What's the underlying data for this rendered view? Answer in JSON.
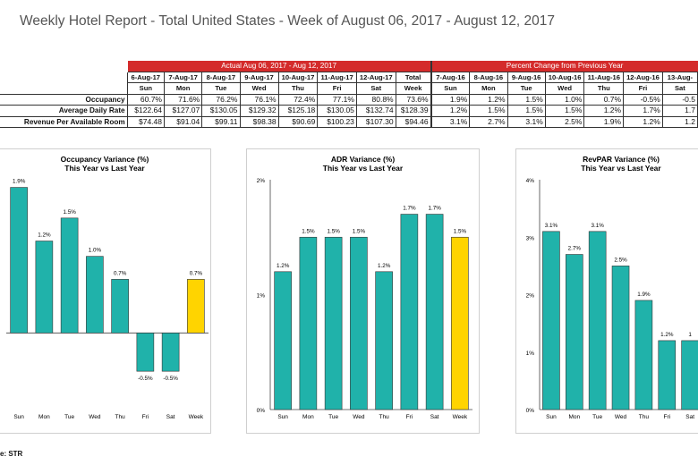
{
  "report": {
    "title": "Weekly Hotel Report - Total United States - Week of August 06, 2017 - August 12, 2017",
    "source": "e: STR"
  },
  "table": {
    "group_actual": "Actual Aug 06, 2017 - Aug 12, 2017",
    "group_change": "Percent Change from Previous Year",
    "actual_dates": [
      "6-Aug-17",
      "7-Aug-17",
      "8-Aug-17",
      "9-Aug-17",
      "10-Aug-17",
      "11-Aug-17",
      "12-Aug-17",
      "Total"
    ],
    "actual_days": [
      "Sun",
      "Mon",
      "Tue",
      "Wed",
      "Thu",
      "Fri",
      "Sat",
      "Week"
    ],
    "change_dates": [
      "7-Aug-16",
      "8-Aug-16",
      "9-Aug-16",
      "10-Aug-16",
      "11-Aug-16",
      "12-Aug-16",
      "13-Aug-"
    ],
    "change_days": [
      "Sun",
      "Mon",
      "Tue",
      "Wed",
      "Thu",
      "Fri",
      "Sat"
    ],
    "rows": [
      {
        "label": "Occupancy",
        "actual": [
          "60.7%",
          "71.6%",
          "76.2%",
          "76.1%",
          "72.4%",
          "77.1%",
          "80.8%",
          "73.6%"
        ],
        "change": [
          "1.9%",
          "1.2%",
          "1.5%",
          "1.0%",
          "0.7%",
          "-0.5%",
          "-0.5"
        ]
      },
      {
        "label": "Average Daily Rate",
        "actual": [
          "$122.64",
          "$127.07",
          "$130.05",
          "$129.32",
          "$125.18",
          "$130.05",
          "$132.74",
          "$128.39"
        ],
        "change": [
          "1.2%",
          "1.5%",
          "1.5%",
          "1.5%",
          "1.2%",
          "1.7%",
          "1.7"
        ]
      },
      {
        "label": "Revenue Per Available Room",
        "actual": [
          "$74.48",
          "$91.04",
          "$99.11",
          "$98.38",
          "$90.69",
          "$100.23",
          "$107.30",
          "$94.46"
        ],
        "change": [
          "3.1%",
          "2.7%",
          "3.1%",
          "2.5%",
          "1.9%",
          "1.2%",
          "1.2"
        ]
      }
    ]
  },
  "colors": {
    "bar": "#20b2aa",
    "week_bar": "#ffd400",
    "header_red": "#d42b2b"
  },
  "chart_data": [
    {
      "type": "bar",
      "title": "Occupancy Variance (%)",
      "subtitle": "This Year vs Last Year",
      "categories": [
        "Sun",
        "Mon",
        "Tue",
        "Wed",
        "Thu",
        "Fri",
        "Sat",
        "Week"
      ],
      "values": [
        1.9,
        1.2,
        1.5,
        1.0,
        0.7,
        -0.5,
        -0.5,
        0.7
      ],
      "labels": [
        "1.9%",
        "1.2%",
        "1.5%",
        "1.0%",
        "0.7%",
        "-0.5%",
        "-0.5%",
        "0.7%"
      ],
      "ylim": [
        -1.0,
        2.0
      ],
      "yticks": [],
      "highlight": "Week"
    },
    {
      "type": "bar",
      "title": "ADR Variance (%)",
      "subtitle": "This Year vs Last Year",
      "categories": [
        "Sun",
        "Mon",
        "Tue",
        "Wed",
        "Thu",
        "Fri",
        "Sat",
        "Week"
      ],
      "values": [
        1.2,
        1.5,
        1.5,
        1.5,
        1.2,
        1.7,
        1.7,
        1.5
      ],
      "labels": [
        "1.2%",
        "1.5%",
        "1.5%",
        "1.5%",
        "1.2%",
        "1.7%",
        "1.7%",
        "1.5%"
      ],
      "ylim": [
        0,
        2
      ],
      "yticks": [
        "0%",
        "1%",
        "2%"
      ],
      "highlight": "Week"
    },
    {
      "type": "bar",
      "title": "RevPAR Variance (%)",
      "subtitle": "This Year vs Last Year",
      "categories": [
        "Sun",
        "Mon",
        "Tue",
        "Wed",
        "Thu",
        "Fri",
        "Sat"
      ],
      "values": [
        3.1,
        2.7,
        3.1,
        2.5,
        1.9,
        1.2,
        1.2
      ],
      "labels": [
        "3.1%",
        "2.7%",
        "3.1%",
        "2.5%",
        "1.9%",
        "1.2%",
        "1"
      ],
      "ylim": [
        0,
        4
      ],
      "yticks": [
        "0%",
        "1%",
        "2%",
        "3%",
        "4%"
      ],
      "highlight": ""
    }
  ]
}
